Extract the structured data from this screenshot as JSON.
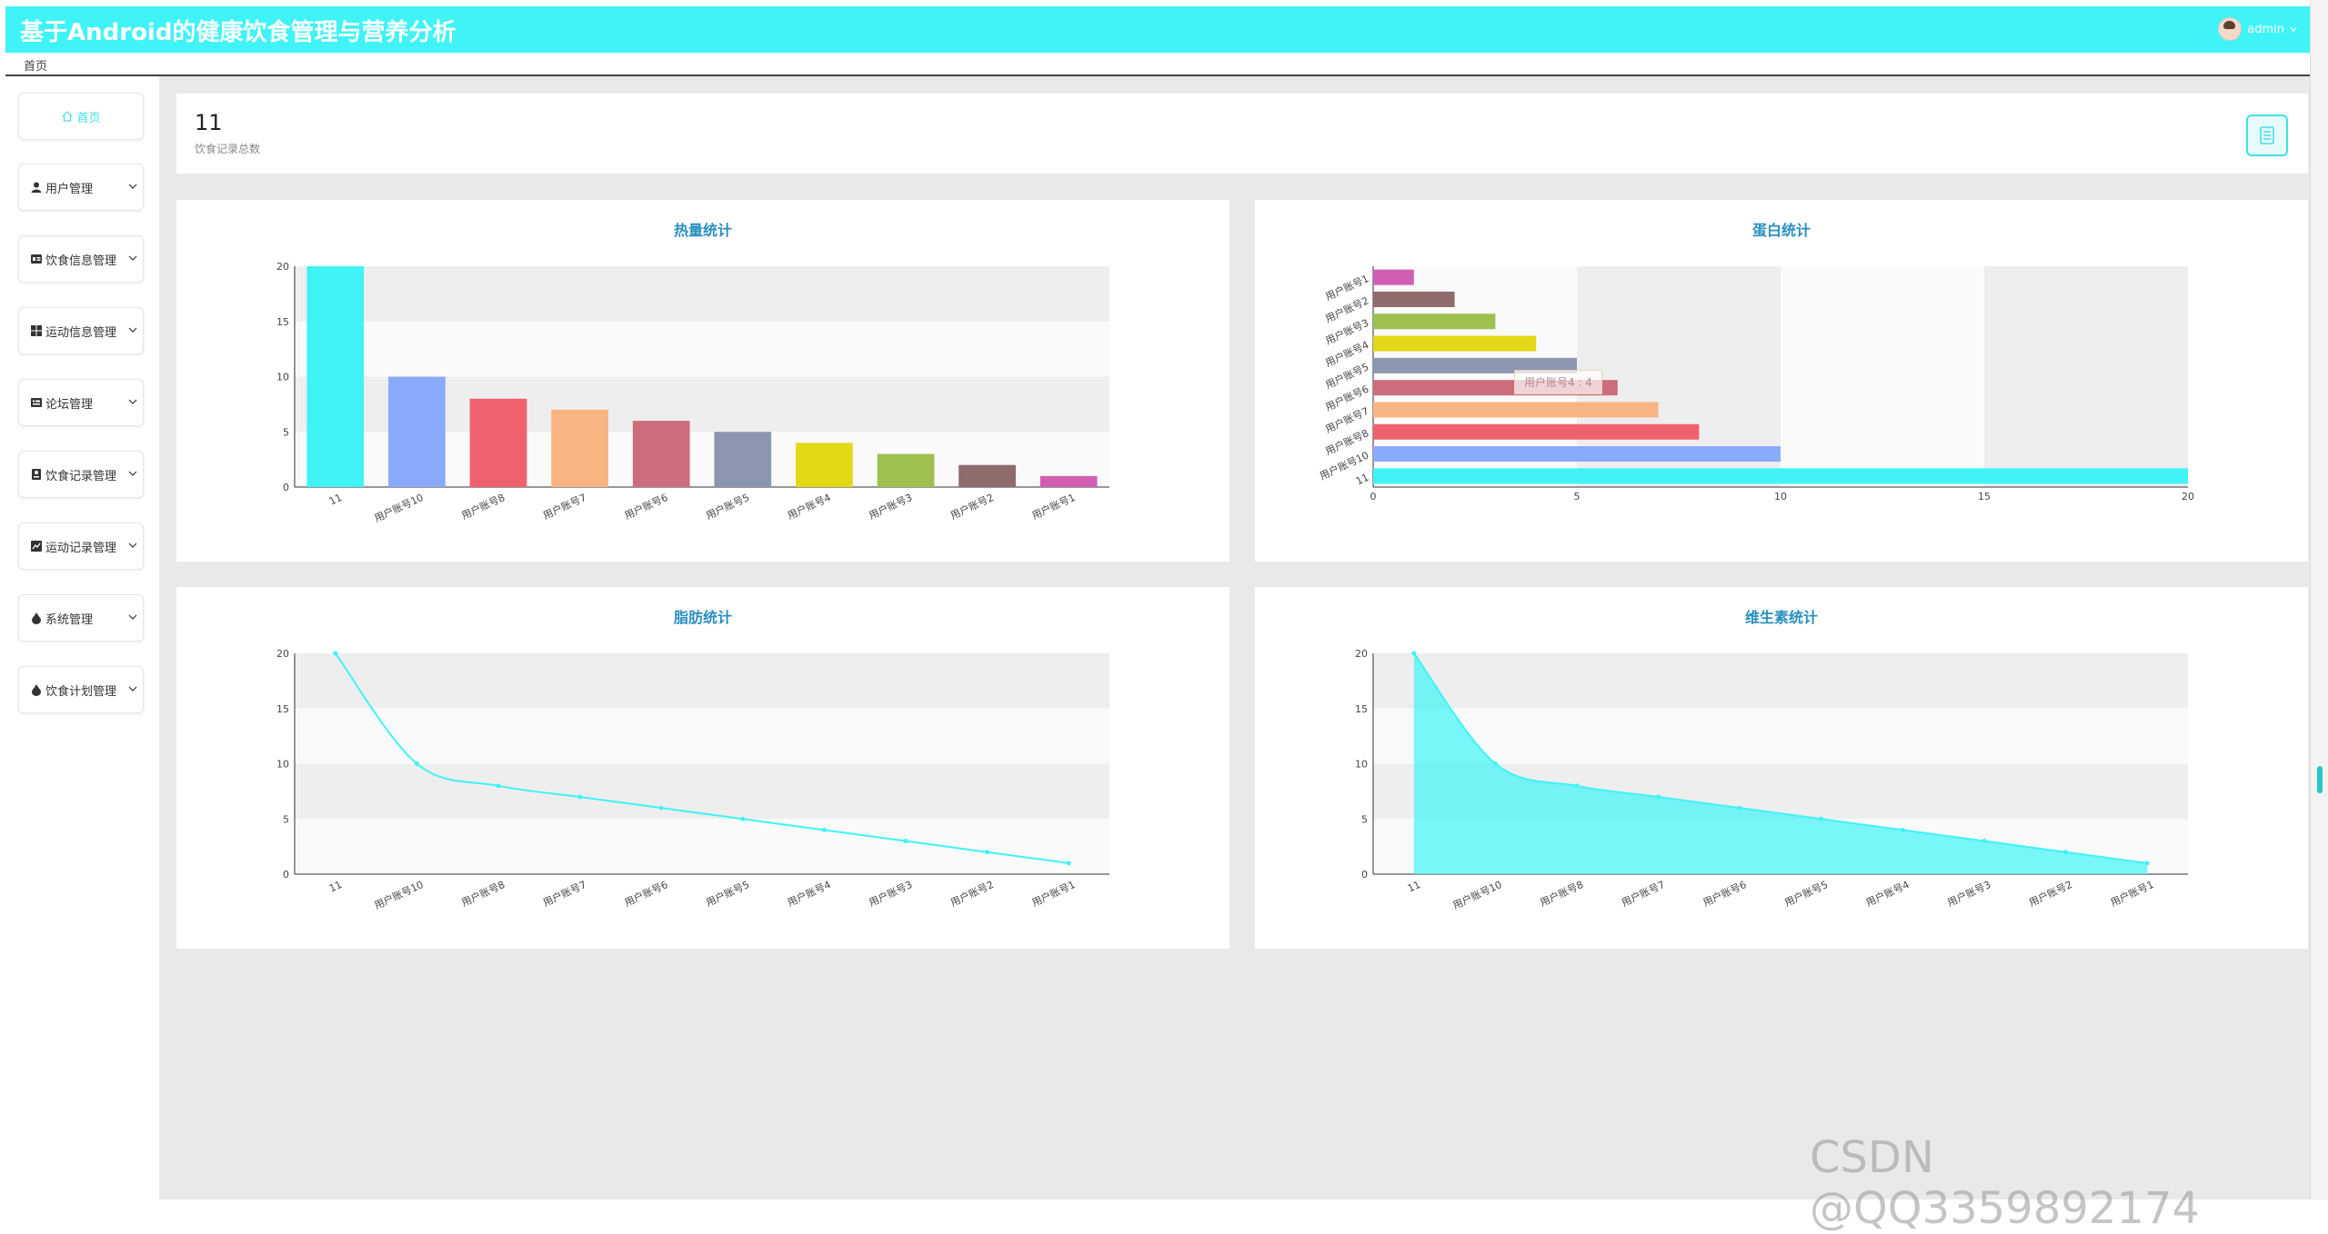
{
  "header": {
    "title": "基于Android的健康饮食管理与营养分析",
    "user": "admin"
  },
  "breadcrumb": "首页",
  "sidebar": {
    "items": [
      {
        "label": "首页",
        "icon": "home-icon",
        "active": true
      },
      {
        "label": "用户管理",
        "icon": "user-icon"
      },
      {
        "label": "饮食信息管理",
        "icon": "list-icon"
      },
      {
        "label": "运动信息管理",
        "icon": "grid-icon"
      },
      {
        "label": "论坛管理",
        "icon": "forum-icon"
      },
      {
        "label": "饮食记录管理",
        "icon": "record-icon"
      },
      {
        "label": "运动记录管理",
        "icon": "chart-icon"
      },
      {
        "label": "系统管理",
        "icon": "drop-icon"
      },
      {
        "label": "饮食计划管理",
        "icon": "drop-icon"
      }
    ]
  },
  "stat": {
    "value": "11",
    "label": "饮食记录总数"
  },
  "tooltip": "用户账号4 : 4",
  "watermark": "CSDN @QQ3359892174",
  "colors": {
    "accent": "#40f3f6",
    "title": "#2a8fbf",
    "palette": [
      "#40f3f6",
      "#8aabfc",
      "#f0616f",
      "#f8b582",
      "#cc6d7d",
      "#8c96b0",
      "#e3d816",
      "#9ec04f",
      "#8f6b6b",
      "#d05fb4"
    ]
  },
  "chart_data": [
    {
      "id": "calories",
      "type": "bar",
      "title": "热量统计",
      "categories": [
        "11",
        "用户账号10",
        "用户账号8",
        "用户账号7",
        "用户账号6",
        "用户账号5",
        "用户账号4",
        "用户账号3",
        "用户账号2",
        "用户账号1"
      ],
      "values": [
        20,
        10,
        8,
        7,
        6,
        5,
        4,
        3,
        2,
        1
      ],
      "yticks": [
        0,
        5,
        10,
        15,
        20
      ],
      "ylim": [
        0,
        20
      ]
    },
    {
      "id": "protein",
      "type": "bar",
      "orientation": "horizontal",
      "title": "蛋白统计",
      "categories": [
        "用户账号1",
        "用户账号2",
        "用户账号3",
        "用户账号4",
        "用户账号5",
        "用户账号6",
        "用户账号7",
        "用户账号8",
        "用户账号10",
        "11"
      ],
      "values": [
        1,
        2,
        3,
        4,
        5,
        6,
        7,
        8,
        10,
        20
      ],
      "xticks": [
        0,
        5,
        10,
        15,
        20
      ],
      "xlim": [
        0,
        20
      ]
    },
    {
      "id": "fat",
      "type": "line",
      "title": "脂肪统计",
      "categories": [
        "11",
        "用户账号10",
        "用户账号8",
        "用户账号7",
        "用户账号6",
        "用户账号5",
        "用户账号4",
        "用户账号3",
        "用户账号2",
        "用户账号1"
      ],
      "values": [
        20,
        10,
        8,
        7,
        6,
        5,
        4,
        3,
        2,
        1
      ],
      "yticks": [
        0,
        5,
        10,
        15,
        20
      ],
      "ylim": [
        0,
        20
      ]
    },
    {
      "id": "vitamin",
      "type": "area",
      "title": "维生素统计",
      "categories": [
        "11",
        "用户账号10",
        "用户账号8",
        "用户账号7",
        "用户账号6",
        "用户账号5",
        "用户账号4",
        "用户账号3",
        "用户账号2",
        "用户账号1"
      ],
      "values": [
        20,
        10,
        8,
        7,
        6,
        5,
        4,
        3,
        2,
        1
      ],
      "yticks": [
        0,
        5,
        10,
        15,
        20
      ],
      "ylim": [
        0,
        20
      ]
    }
  ]
}
